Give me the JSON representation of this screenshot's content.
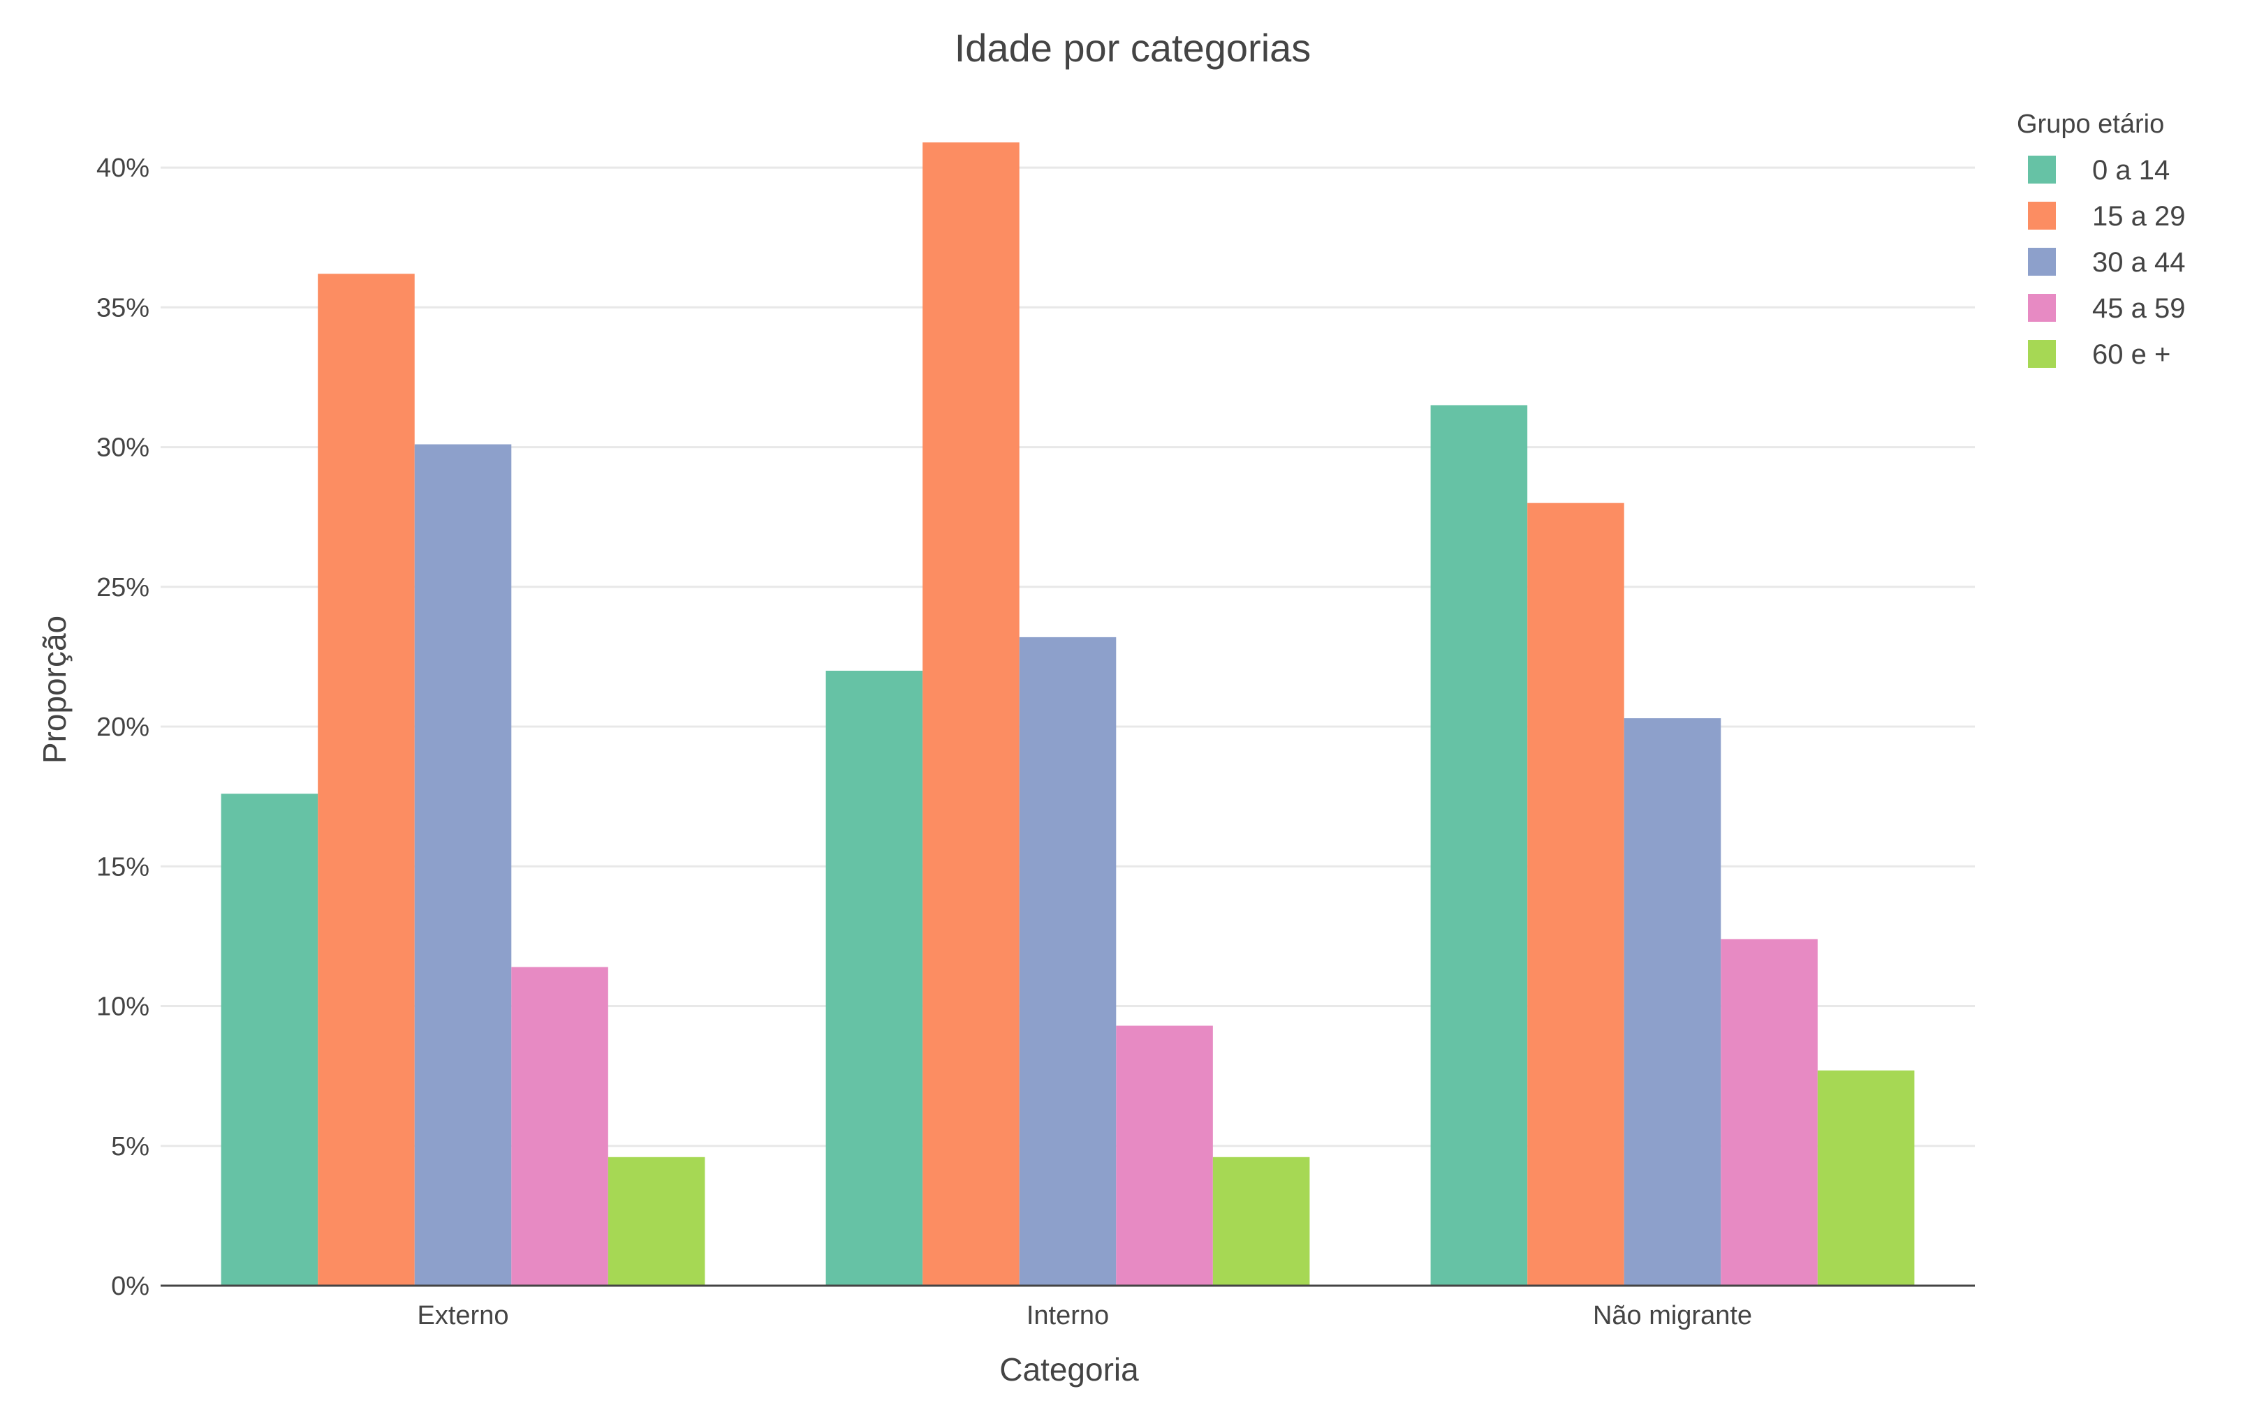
{
  "chart_data": {
    "type": "bar",
    "title": "Idade por categorias",
    "xlabel": "Categoria",
    "ylabel": "Proporção",
    "categories": [
      "Externo",
      "Interno",
      "Não migrante"
    ],
    "series": [
      {
        "name": "0 a 14",
        "color": "#66c2a5",
        "values": [
          0.176,
          0.22,
          0.315
        ]
      },
      {
        "name": "15 a 29",
        "color": "#fc8d62",
        "values": [
          0.362,
          0.409,
          0.28
        ]
      },
      {
        "name": "30 a 44",
        "color": "#8da0cb",
        "values": [
          0.301,
          0.232,
          0.203
        ]
      },
      {
        "name": "45 a 59",
        "color": "#e78ac3",
        "values": [
          0.114,
          0.093,
          0.124
        ]
      },
      {
        "name": "60 e +",
        "color": "#a6d854",
        "values": [
          0.046,
          0.046,
          0.077
        ]
      }
    ],
    "ylim": [
      0,
      0.42
    ],
    "yticks": [
      0,
      0.05,
      0.1,
      0.15,
      0.2,
      0.25,
      0.3,
      0.35,
      0.4
    ],
    "ytick_labels": [
      "0%",
      "5%",
      "10%",
      "15%",
      "20%",
      "25%",
      "30%",
      "35%",
      "40%"
    ],
    "grid": true,
    "legend": {
      "title": "Grupo etário",
      "placement": "top-right"
    }
  }
}
